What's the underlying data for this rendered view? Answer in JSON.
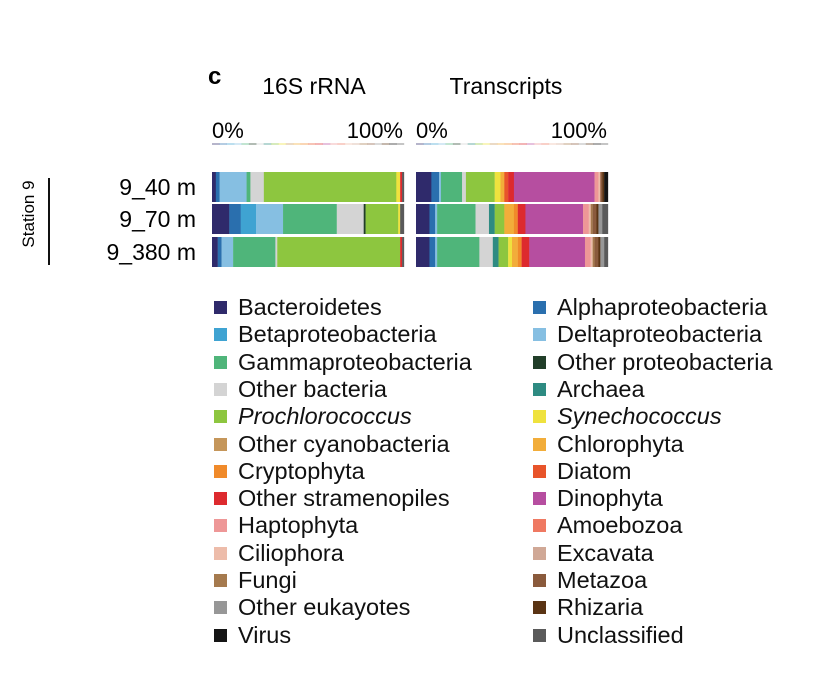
{
  "panel_label": "c",
  "chart_data": {
    "type": "bar",
    "orientation": "horizontal",
    "stacked": "percent",
    "group_label": "Station 9",
    "axis_ticks": [
      "0%",
      "100%"
    ],
    "legend_placement": "bottom",
    "categories": [
      "9_40 m",
      "9_70 m",
      "9_380 m"
    ],
    "panels": [
      {
        "title": "16S rRNA",
        "rows": [
          {
            "category": "9_40 m",
            "segments": [
              {
                "taxon": "Bacteroidetes",
                "value": 2
              },
              {
                "taxon": "Alphaproteobacteria",
                "value": 2
              },
              {
                "taxon": "Deltaproteobacteria",
                "value": 14
              },
              {
                "taxon": "Gammaproteobacteria",
                "value": 2
              },
              {
                "taxon": "Other bacteria",
                "value": 7
              },
              {
                "taxon": "Prochlorococcus",
                "value": 69
              },
              {
                "taxon": "Synechococcus",
                "value": 2
              },
              {
                "taxon": "Other stramenopiles",
                "value": 1
              },
              {
                "taxon": "Unclassified",
                "value": 1
              }
            ]
          },
          {
            "category": "9_70 m",
            "segments": [
              {
                "taxon": "Bacteroidetes",
                "value": 9
              },
              {
                "taxon": "Alphaproteobacteria",
                "value": 6
              },
              {
                "taxon": "Betaproteobacteria",
                "value": 8
              },
              {
                "taxon": "Deltaproteobacteria",
                "value": 14
              },
              {
                "taxon": "Gammaproteobacteria",
                "value": 28
              },
              {
                "taxon": "Other bacteria",
                "value": 14
              },
              {
                "taxon": "Other proteobacteria",
                "value": 1
              },
              {
                "taxon": "Prochlorococcus",
                "value": 17
              },
              {
                "taxon": "Synechococcus",
                "value": 1
              },
              {
                "taxon": "Unclassified",
                "value": 2
              }
            ]
          },
          {
            "category": "9_380 m",
            "segments": [
              {
                "taxon": "Bacteroidetes",
                "value": 3
              },
              {
                "taxon": "Alphaproteobacteria",
                "value": 2
              },
              {
                "taxon": "Deltaproteobacteria",
                "value": 6
              },
              {
                "taxon": "Gammaproteobacteria",
                "value": 22
              },
              {
                "taxon": "Other bacteria",
                "value": 1
              },
              {
                "taxon": "Prochlorococcus",
                "value": 64
              },
              {
                "taxon": "Other stramenopiles",
                "value": 1
              },
              {
                "taxon": "Unclassified",
                "value": 1
              }
            ]
          }
        ]
      },
      {
        "title": "Transcripts",
        "rows": [
          {
            "category": "9_40 m",
            "segments": [
              {
                "taxon": "Bacteroidetes",
                "value": 8
              },
              {
                "taxon": "Alphaproteobacteria",
                "value": 4
              },
              {
                "taxon": "Deltaproteobacteria",
                "value": 1
              },
              {
                "taxon": "Gammaproteobacteria",
                "value": 11
              },
              {
                "taxon": "Other bacteria",
                "value": 2
              },
              {
                "taxon": "Prochlorococcus",
                "value": 15
              },
              {
                "taxon": "Synechococcus",
                "value": 3
              },
              {
                "taxon": "Chlorophyta",
                "value": 2
              },
              {
                "taxon": "Diatom",
                "value": 2
              },
              {
                "taxon": "Other stramenopiles",
                "value": 3
              },
              {
                "taxon": "Dinophyta",
                "value": 42
              },
              {
                "taxon": "Haptophyta",
                "value": 2
              },
              {
                "taxon": "Ciliophora",
                "value": 1
              },
              {
                "taxon": "Metazoa",
                "value": 1
              },
              {
                "taxon": "Rhizaria",
                "value": 1
              },
              {
                "taxon": "Virus",
                "value": 2
              }
            ]
          },
          {
            "category": "9_70 m",
            "segments": [
              {
                "taxon": "Bacteroidetes",
                "value": 7
              },
              {
                "taxon": "Alphaproteobacteria",
                "value": 3
              },
              {
                "taxon": "Deltaproteobacteria",
                "value": 1
              },
              {
                "taxon": "Gammaproteobacteria",
                "value": 20
              },
              {
                "taxon": "Other bacteria",
                "value": 7
              },
              {
                "taxon": "Archaea",
                "value": 3
              },
              {
                "taxon": "Prochlorococcus",
                "value": 5
              },
              {
                "taxon": "Chlorophyta",
                "value": 5
              },
              {
                "taxon": "Cryptophyta",
                "value": 2
              },
              {
                "taxon": "Other stramenopiles",
                "value": 4
              },
              {
                "taxon": "Dinophyta",
                "value": 30
              },
              {
                "taxon": "Haptophyta",
                "value": 3
              },
              {
                "taxon": "Ciliophora",
                "value": 1
              },
              {
                "taxon": "Fungi",
                "value": 1
              },
              {
                "taxon": "Metazoa",
                "value": 2
              },
              {
                "taxon": "Rhizaria",
                "value": 1
              },
              {
                "taxon": "Other eukayotes",
                "value": 2
              },
              {
                "taxon": "Unclassified",
                "value": 3
              }
            ]
          },
          {
            "category": "9_380 m",
            "segments": [
              {
                "taxon": "Bacteroidetes",
                "value": 7
              },
              {
                "taxon": "Alphaproteobacteria",
                "value": 3
              },
              {
                "taxon": "Deltaproteobacteria",
                "value": 1
              },
              {
                "taxon": "Gammaproteobacteria",
                "value": 22
              },
              {
                "taxon": "Other bacteria",
                "value": 7
              },
              {
                "taxon": "Archaea",
                "value": 3
              },
              {
                "taxon": "Prochlorococcus",
                "value": 5
              },
              {
                "taxon": "Synechococcus",
                "value": 2
              },
              {
                "taxon": "Chlorophyta",
                "value": 3
              },
              {
                "taxon": "Cryptophyta",
                "value": 2
              },
              {
                "taxon": "Other stramenopiles",
                "value": 4
              },
              {
                "taxon": "Dinophyta",
                "value": 29
              },
              {
                "taxon": "Haptophyta",
                "value": 3
              },
              {
                "taxon": "Ciliophora",
                "value": 1
              },
              {
                "taxon": "Fungi",
                "value": 1
              },
              {
                "taxon": "Metazoa",
                "value": 2
              },
              {
                "taxon": "Rhizaria",
                "value": 1
              },
              {
                "taxon": "Other eukayotes",
                "value": 2
              },
              {
                "taxon": "Unclassified",
                "value": 2
              }
            ]
          }
        ]
      }
    ],
    "legend": [
      {
        "label": "Bacteroidetes",
        "color": "#2f2a6b",
        "italic": false
      },
      {
        "label": "Alphaproteobacteria",
        "color": "#2a6fae",
        "italic": false
      },
      {
        "label": "Betaproteobacteria",
        "color": "#3fa3d2",
        "italic": false
      },
      {
        "label": "Deltaproteobacteria",
        "color": "#86bfe2",
        "italic": false
      },
      {
        "label": "Gammaproteobacteria",
        "color": "#4fb57a",
        "italic": false
      },
      {
        "label": "Other proteobacteria",
        "color": "#213e29",
        "italic": false
      },
      {
        "label": "Other bacteria",
        "color": "#d4d4d4",
        "italic": false
      },
      {
        "label": "Archaea",
        "color": "#2e8b82",
        "italic": false
      },
      {
        "label": "Prochlorococcus",
        "color": "#8dc63f",
        "italic": true
      },
      {
        "label": "Synechococcus",
        "color": "#efe23e",
        "italic": true
      },
      {
        "label": "Other cyanobacteria",
        "color": "#c5965a",
        "italic": false
      },
      {
        "label": "Chlorophyta",
        "color": "#f2ad3a",
        "italic": false
      },
      {
        "label": "Cryptophyta",
        "color": "#f08a2a",
        "italic": false
      },
      {
        "label": "Diatom",
        "color": "#e8542a",
        "italic": false
      },
      {
        "label": "Other stramenopiles",
        "color": "#dd2a2e",
        "italic": false
      },
      {
        "label": "Dinophyta",
        "color": "#b64ea0",
        "italic": false
      },
      {
        "label": "Haptophyta",
        "color": "#ee9797",
        "italic": false
      },
      {
        "label": "Amoebozoa",
        "color": "#ef7962",
        "italic": false
      },
      {
        "label": "Ciliophora",
        "color": "#edbcaa",
        "italic": false
      },
      {
        "label": "Excavata",
        "color": "#d0a896",
        "italic": false
      },
      {
        "label": "Fungi",
        "color": "#a57a4e",
        "italic": false
      },
      {
        "label": "Metazoa",
        "color": "#8a5a3c",
        "italic": false
      },
      {
        "label": "Other eukayotes",
        "color": "#979797",
        "italic": false
      },
      {
        "label": "Rhizaria",
        "color": "#5a3414",
        "italic": false
      },
      {
        "label": "Virus",
        "color": "#151515",
        "italic": false
      },
      {
        "label": "Unclassified",
        "color": "#5a5a5a",
        "italic": false
      }
    ]
  }
}
